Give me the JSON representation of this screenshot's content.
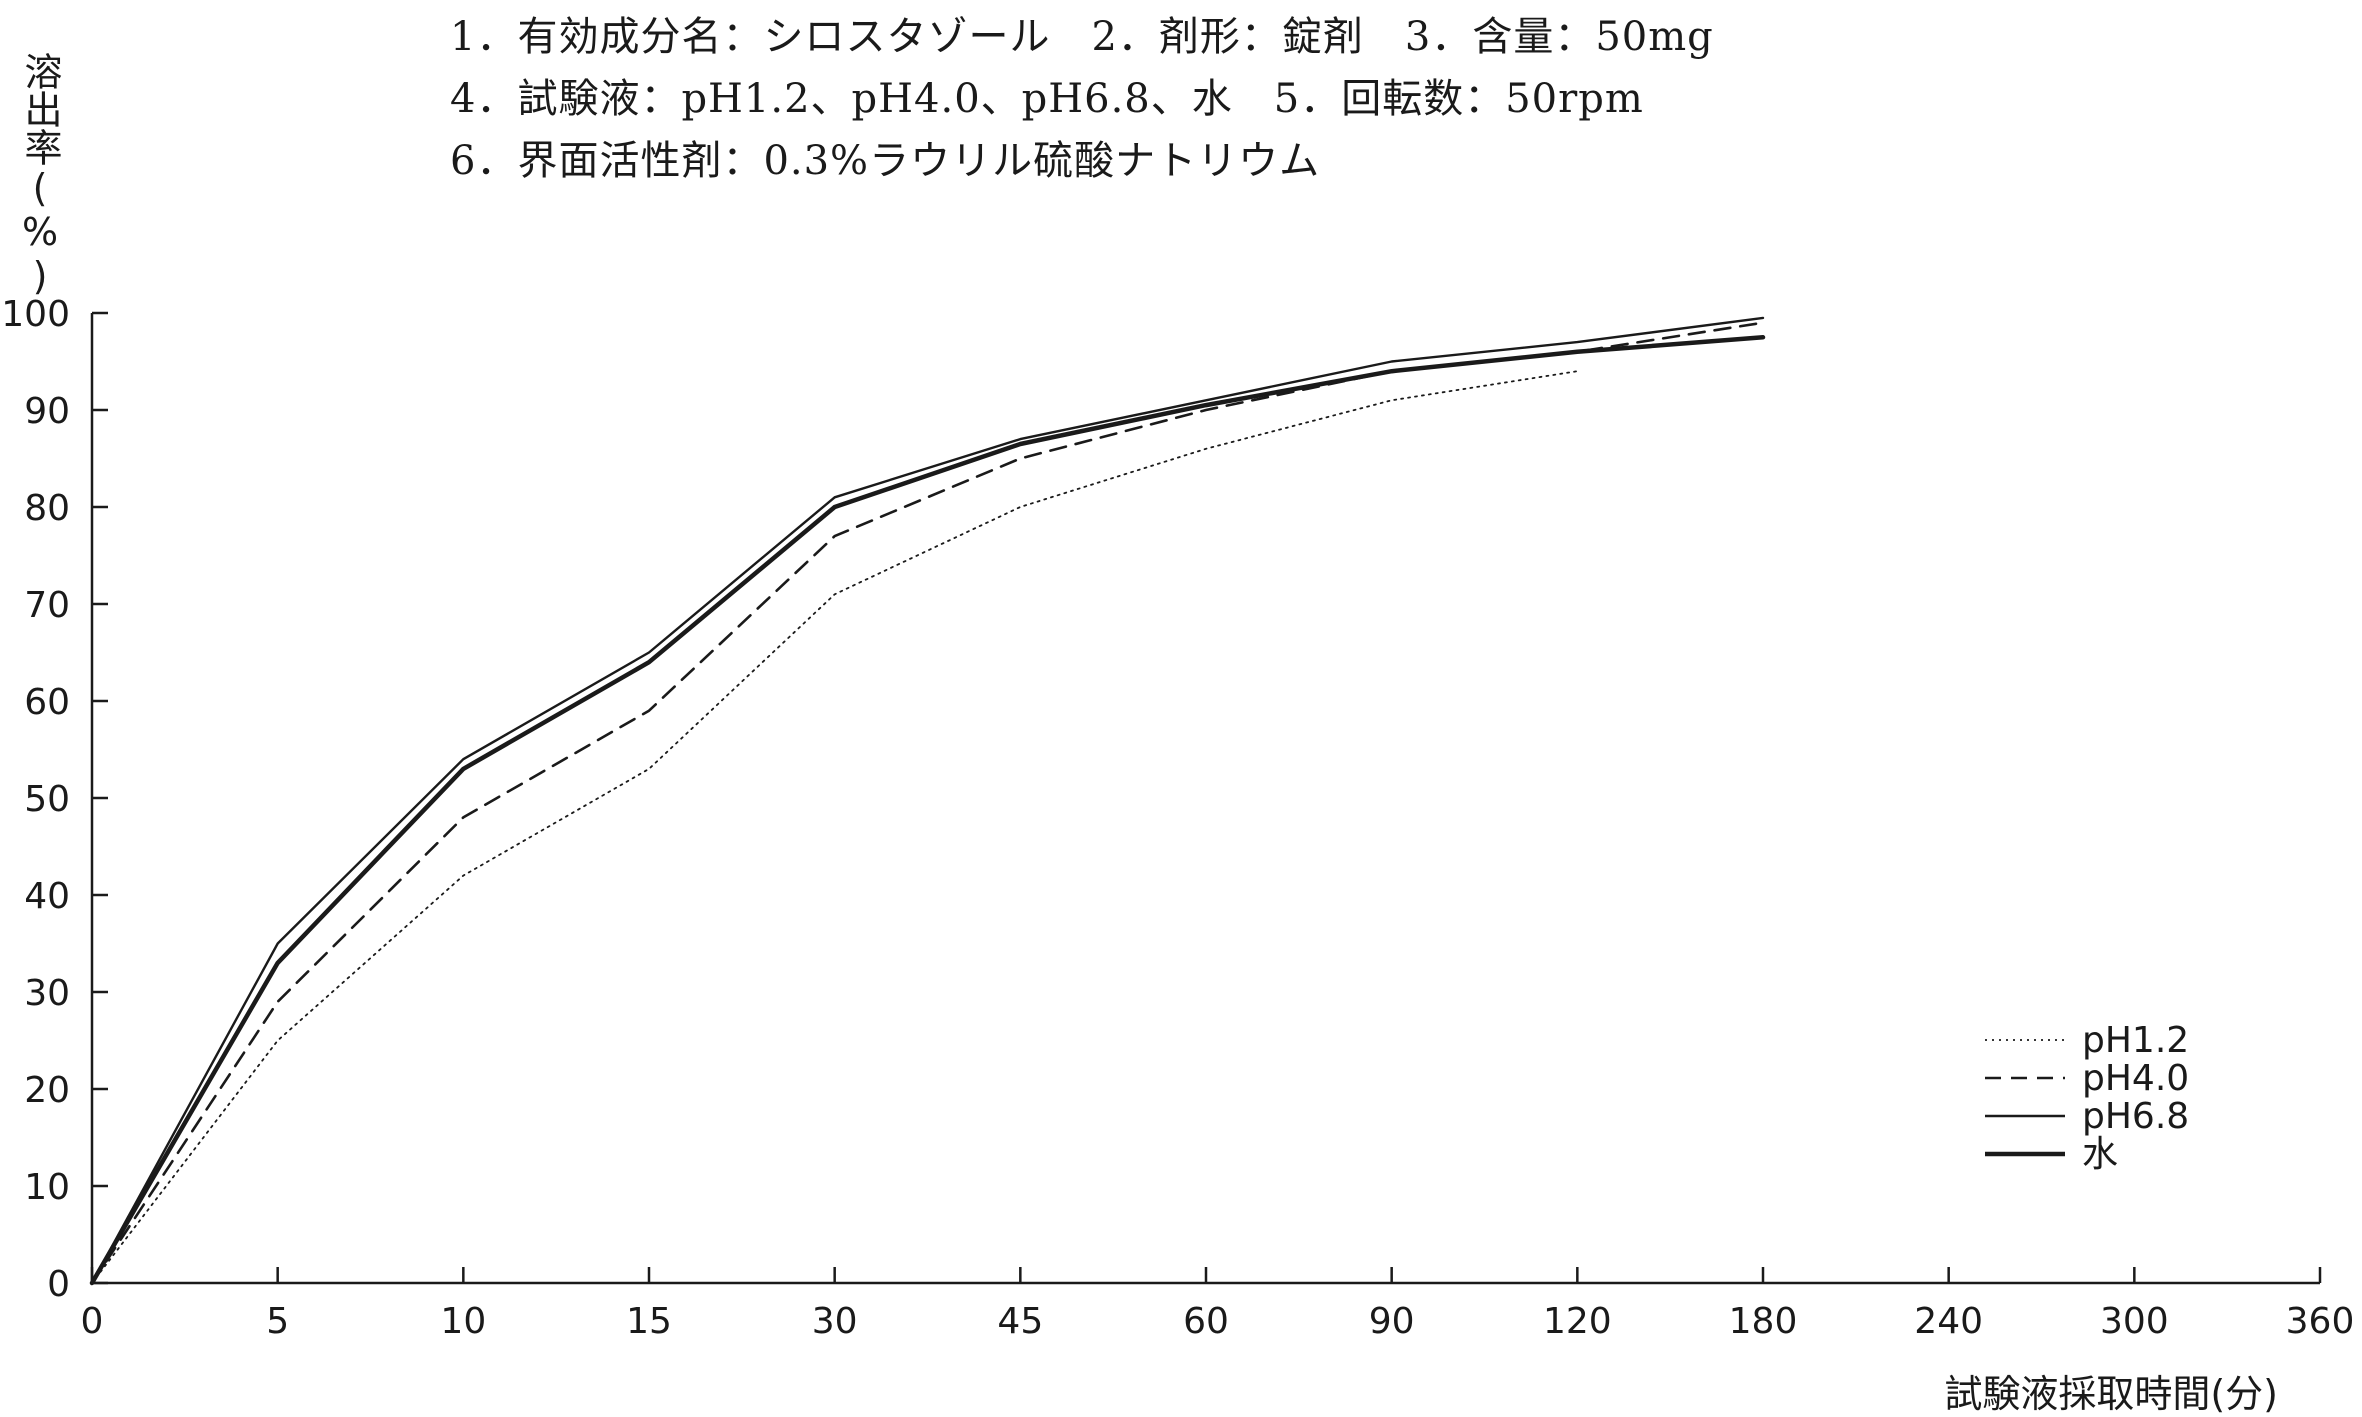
{
  "header": {
    "line1": "1．有効成分名：シロスタゾール　2．剤形：錠剤　3．含量：50mg",
    "line2": "4．試験液：pH1.2、pH4.0、pH6.8、水　5．回転数：50rpm",
    "line3": "6．界面活性剤：0.3%ラウリル硫酸ナトリウム"
  },
  "chart_data": {
    "type": "line",
    "title": "",
    "xlabel": "試験液採取時間(分)",
    "ylabel": "溶出率(%)",
    "x_scale": "categorical (equally spaced ticks)",
    "categories": [
      "0",
      "5",
      "10",
      "15",
      "30",
      "45",
      "60",
      "90",
      "120",
      "180",
      "240",
      "300",
      "360"
    ],
    "ylim": [
      0,
      100
    ],
    "y_ticks": [
      "0",
      "10",
      "20",
      "30",
      "40",
      "50",
      "60",
      "70",
      "80",
      "90",
      "100"
    ],
    "grid": false,
    "legend_position": "bottom-right",
    "series": [
      {
        "name": "pH1.2",
        "style": "dotted",
        "color": "#1a1a1a",
        "values": [
          0,
          25,
          42,
          53,
          71,
          80,
          86,
          91,
          94,
          null,
          null,
          null,
          null
        ]
      },
      {
        "name": "pH4.0",
        "style": "dashed",
        "color": "#1a1a1a",
        "values": [
          0,
          29,
          48,
          59,
          77,
          85,
          90,
          94,
          96,
          99,
          null,
          null,
          null
        ]
      },
      {
        "name": "pH6.8",
        "style": "solid",
        "color": "#1a1a1a",
        "values": [
          0,
          35,
          54,
          65,
          81,
          87,
          91,
          95,
          97,
          99.5,
          null,
          null,
          null
        ]
      },
      {
        "name": "水",
        "style": "solid-thick",
        "color": "#1a1a1a",
        "values": [
          0,
          33,
          53,
          64,
          80,
          86.5,
          90.5,
          94,
          96,
          97.5,
          null,
          null,
          null
        ]
      }
    ]
  }
}
